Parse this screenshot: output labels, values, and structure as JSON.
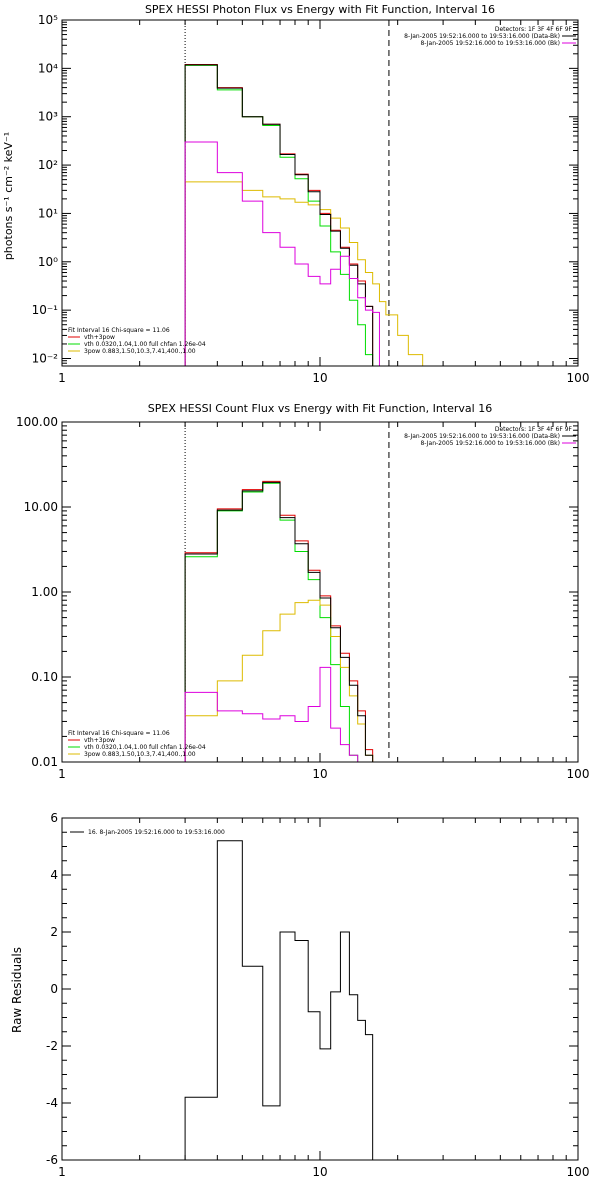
{
  "panels": {
    "photon": {
      "title": "SPEX HESSI Photon Flux vs Energy with Fit Function, Interval 16",
      "ylabel": "photons s⁻¹ cm⁻² keV⁻¹",
      "legend_right": [
        {
          "text": "Detectors: 1F 3F 4F 6F 9F",
          "color": ""
        },
        {
          "text": "8-Jan-2005 19:52:16.000 to 19:53:16.000 (Data-Bk)",
          "color": "#000000"
        },
        {
          "text": "8-Jan-2005 19:52:16.000 to 19:53:16.000 (Bk)",
          "color": "#dd00dd"
        }
      ],
      "legend_left": [
        {
          "text": "Fit Interval 16   Chi-square = 11.06",
          "color": ""
        },
        {
          "text": "vth+3pow",
          "color": "#e00000"
        },
        {
          "text": "vth 0.0320,1.04,1.00  full chfan 1.26e-04",
          "color": "#00dd00"
        },
        {
          "text": "3pow 0.883,1.50,10.3,7.41,400.,1.00",
          "color": "#ddbb00"
        }
      ]
    },
    "count": {
      "title": "SPEX HESSI Count Flux vs Energy with Fit Function, Interval 16",
      "legend_right": [
        {
          "text": "Detectors: 1F 3F 4F 6F 9F",
          "color": ""
        },
        {
          "text": "8-Jan-2005 19:52:16.000 to 19:53:16.000 (Data-Bk)",
          "color": "#000000"
        },
        {
          "text": "8-Jan-2005 19:52:16.000 to 19:53:16.000 (Bk)",
          "color": "#dd00dd"
        }
      ],
      "legend_left": [
        {
          "text": "Fit Interval 16   Chi-square = 11.06",
          "color": ""
        },
        {
          "text": "vth+3pow",
          "color": "#e00000"
        },
        {
          "text": "vth 0.0320,1.04,1.00  full chfan 1.26e-04",
          "color": "#00dd00"
        },
        {
          "text": "3pow 0.883,1.50,10.3,7.41,400.,1.00",
          "color": "#ddbb00"
        }
      ]
    },
    "resid": {
      "ylabel": "Raw Residuals",
      "legend": "16.  8-Jan-2005 19:52:16.000 to 19:53:16.000"
    }
  },
  "chart_data": [
    {
      "type": "line",
      "title": "SPEX HESSI Photon Flux vs Energy with Fit Function, Interval 16",
      "xlabel": "",
      "ylabel": "photons s⁻¹ cm⁻² keV⁻¹",
      "x_scale": "log",
      "y_scale": "log",
      "xlim": [
        1,
        100
      ],
      "ylim": [
        0.007,
        100000
      ],
      "x_ticks": [
        1,
        10,
        100
      ],
      "y_ticks": [
        0.01,
        0.1,
        1,
        10,
        100,
        1000,
        10000,
        100000
      ],
      "y_tick_labels": [
        "10⁻²",
        "10⁻¹",
        "10⁰",
        "10¹",
        "10²",
        "10³",
        "10⁴",
        "10⁵"
      ],
      "fit_range": [
        3,
        18.5
      ],
      "bin_edges": [
        3,
        4,
        5,
        6,
        7,
        8,
        9,
        10,
        11,
        12,
        13,
        14,
        15,
        16,
        17,
        18,
        20,
        22,
        25
      ],
      "series": [
        {
          "name": "vth+3pow",
          "color": "#e00000",
          "values": [
            12000,
            4000,
            1000,
            700,
            170,
            65,
            30,
            10,
            4.5,
            2,
            0.9,
            0.4,
            0.12,
            null,
            null,
            null,
            null,
            null
          ]
        },
        {
          "name": "vth",
          "color": "#00dd00",
          "values": [
            11500,
            3600,
            1000,
            660,
            145,
            52,
            18,
            5.5,
            1.6,
            0.55,
            0.16,
            0.05,
            0.012,
            null,
            null,
            null,
            null,
            null
          ]
        },
        {
          "name": "3pow",
          "color": "#ddbb00",
          "values": [
            45,
            45,
            30,
            22,
            20,
            17,
            15,
            12,
            8,
            5,
            2.5,
            1.1,
            0.6,
            0.35,
            0.15,
            0.08,
            0.03,
            0.012
          ]
        },
        {
          "name": "Data-Bk",
          "color": "#000000",
          "values": [
            11800,
            3900,
            1000,
            700,
            165,
            63,
            28,
            9.5,
            4.3,
            1.9,
            0.85,
            0.35,
            0.12,
            null,
            null,
            null,
            null,
            null
          ]
        },
        {
          "name": "Bk",
          "color": "#dd00dd",
          "values": [
            300,
            70,
            18,
            4,
            2,
            0.9,
            0.5,
            0.35,
            0.7,
            1.3,
            0.45,
            0.18,
            0.1,
            0.09,
            null,
            null,
            null,
            null
          ]
        }
      ]
    },
    {
      "type": "line",
      "title": "SPEX HESSI Count Flux vs Energy with Fit Function, Interval 16",
      "xlabel": "",
      "ylabel": "",
      "x_scale": "log",
      "y_scale": "log",
      "xlim": [
        1,
        100
      ],
      "ylim": [
        0.01,
        100
      ],
      "x_ticks": [
        1,
        10,
        100
      ],
      "y_ticks": [
        0.01,
        0.1,
        1,
        10,
        100
      ],
      "y_tick_labels": [
        "0.01",
        "0.10",
        "1.00",
        "10.00",
        "100.00"
      ],
      "fit_range": [
        3,
        18.5
      ],
      "bin_edges": [
        3,
        4,
        5,
        6,
        7,
        8,
        9,
        10,
        11,
        12,
        13,
        14,
        15,
        16,
        17,
        18
      ],
      "series": [
        {
          "name": "vth+3pow",
          "color": "#e00000",
          "values": [
            2.9,
            9.5,
            16,
            20,
            8,
            4,
            1.8,
            0.9,
            0.4,
            0.19,
            0.09,
            0.04,
            0.014,
            null,
            null
          ]
        },
        {
          "name": "vth",
          "color": "#00dd00",
          "values": [
            2.6,
            9,
            15,
            19,
            7,
            3,
            1.4,
            0.5,
            0.14,
            0.045,
            0.012,
            null,
            null,
            null,
            null
          ]
        },
        {
          "name": "3pow",
          "color": "#ddbb00",
          "values": [
            0.035,
            0.09,
            0.18,
            0.35,
            0.55,
            0.75,
            0.8,
            0.7,
            0.3,
            0.13,
            0.06,
            0.028,
            0.012,
            null,
            null
          ]
        },
        {
          "name": "Data-Bk",
          "color": "#000000",
          "values": [
            2.8,
            9.2,
            15.5,
            19.5,
            7.5,
            3.7,
            1.7,
            0.85,
            0.38,
            0.17,
            0.08,
            0.035,
            0.012,
            null,
            null
          ]
        },
        {
          "name": "Bk",
          "color": "#dd00dd",
          "values": [
            0.066,
            0.04,
            0.037,
            0.032,
            0.035,
            0.03,
            0.045,
            0.13,
            0.025,
            0.016,
            0.012,
            null,
            null,
            null,
            null
          ]
        }
      ]
    },
    {
      "type": "line",
      "title": "",
      "xlabel": "",
      "ylabel": "Raw Residuals",
      "x_scale": "log",
      "y_scale": "linear",
      "xlim": [
        1,
        100
      ],
      "ylim": [
        -6,
        6
      ],
      "x_ticks": [
        1,
        10,
        100
      ],
      "y_ticks": [
        -6,
        -4,
        -2,
        0,
        2,
        4,
        6
      ],
      "y_tick_labels": [
        "-6",
        "-4",
        "-2",
        "0",
        "2",
        "4",
        "6"
      ],
      "bin_edges": [
        3,
        4,
        5,
        6,
        7,
        8,
        9,
        10,
        11,
        12,
        13,
        14,
        15,
        16,
        17,
        18.5
      ],
      "series": [
        {
          "name": "16.  8-Jan-2005 19:52:16.000 to 19:53:16.000",
          "color": "#000000",
          "values": [
            -3.8,
            5.2,
            0.8,
            -4.1,
            2,
            1.7,
            -0.8,
            -2.1,
            -0.1,
            2,
            -0.2,
            -1.1,
            -1.6,
            null
          ],
          "baseline": -6
        }
      ]
    }
  ]
}
